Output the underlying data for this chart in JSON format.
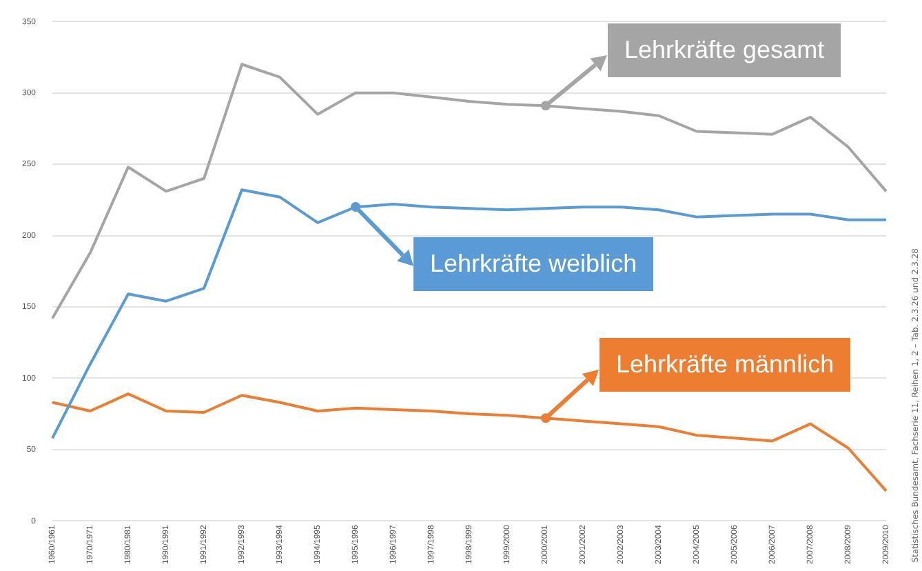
{
  "chart_data": {
    "type": "line",
    "categories": [
      "1960/1961",
      "1970/1971",
      "1980/1981",
      "1990/1991",
      "1991/1992",
      "1992/1993",
      "1993/1994",
      "1994/1995",
      "1995/1996",
      "1996/1997",
      "1997/1998",
      "1998/1999",
      "1999/2000",
      "2000/2001",
      "2001/2002",
      "2002/2003",
      "2003/2004",
      "2004/2005",
      "2005/2006",
      "2006/2007",
      "2007/2008",
      "2008/2009",
      "2009/2010"
    ],
    "series": [
      {
        "name": "Lehrkräfte gesamt",
        "color": "#a5a5a5",
        "values": [
          142,
          188,
          248,
          231,
          240,
          320,
          311,
          285,
          300,
          300,
          297,
          294,
          292,
          291,
          289,
          287,
          284,
          273,
          272,
          271,
          283,
          262,
          231
        ]
      },
      {
        "name": "Lehrkräfte weiblich",
        "color": "#5b9bd5",
        "values": [
          58,
          110,
          159,
          154,
          163,
          232,
          227,
          209,
          220,
          222,
          220,
          219,
          218,
          219,
          220,
          220,
          218,
          213,
          214,
          215,
          215,
          211,
          211
        ]
      },
      {
        "name": "Lehrkräfte männlich",
        "color": "#ed7d31",
        "values": [
          83,
          77,
          89,
          77,
          76,
          88,
          83,
          77,
          79,
          78,
          77,
          75,
          74,
          72,
          70,
          68,
          66,
          60,
          58,
          56,
          68,
          51,
          21
        ]
      }
    ],
    "ylim": [
      0,
      350
    ],
    "yticks": [
      0,
      50,
      100,
      150,
      200,
      250,
      300,
      350
    ],
    "grid": "y",
    "legend": "top right",
    "marker": "none",
    "annotations": [
      "Statistisches Bundesamt, Fachserie 11, Reihen 1, 2 – Tab. 2.3.26 und 2.3.28"
    ]
  }
}
